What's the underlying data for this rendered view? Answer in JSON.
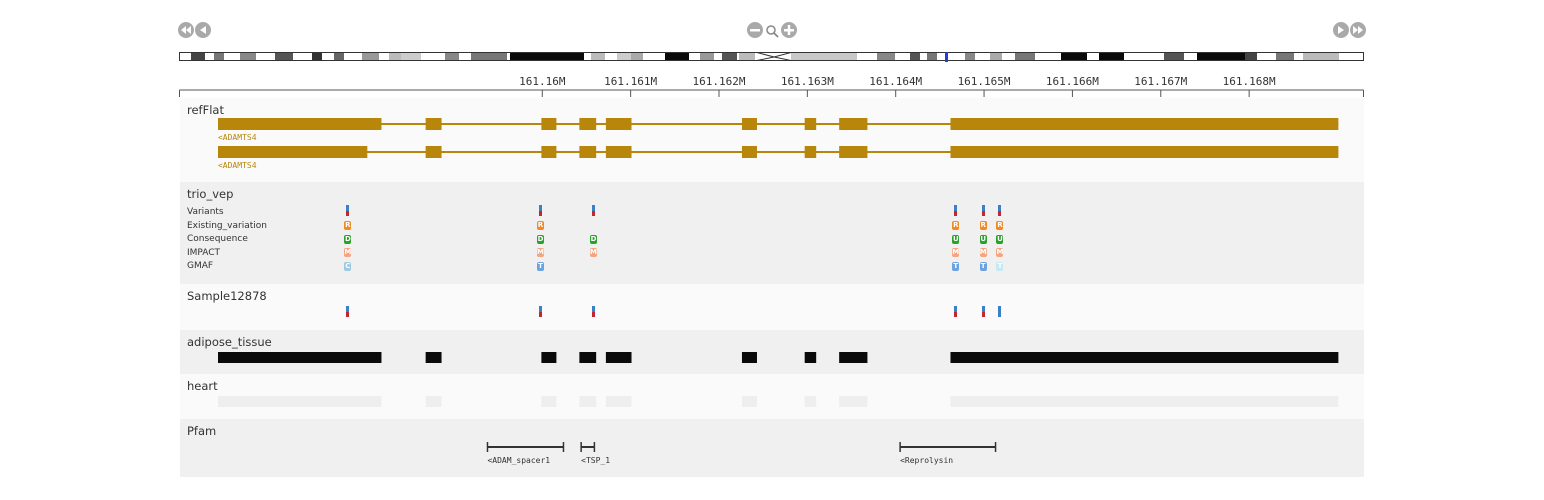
{
  "genome": {
    "range_start": 161155900,
    "range_end": 161169300,
    "ticks": [
      "161.16M",
      "161.161M",
      "161.162M",
      "161.163M",
      "161.164M",
      "161.165M",
      "161.166M",
      "161.167M",
      "161.168M"
    ],
    "tick_values": [
      161160000,
      161161000,
      161162000,
      161163000,
      161164000,
      161165000,
      161166000,
      161167000,
      161168000
    ]
  },
  "nav": {
    "icons": [
      "fast-backward-icon",
      "step-backward-icon",
      "zoom-out-icon",
      "magnifier-icon",
      "zoom-in-icon",
      "step-forward-icon",
      "fast-forward-icon"
    ]
  },
  "colors": {
    "gene": "#b8860b",
    "tissue_adipose": "#0a0a0a",
    "tissue_heart": "#eeeeee",
    "track_bg_a": "#fafafa",
    "track_bg_b": "#f0f0f0",
    "ideogram_marker": "#1f3fd6"
  },
  "tracks": {
    "refflat": {
      "title": "refFlat",
      "transcripts": [
        {
          "label": "<ADAMTS4",
          "start": 161156330,
          "end": 161169010,
          "exons": [
            [
              161156330,
              161158180
            ],
            [
              161158680,
              161158860
            ],
            [
              161159990,
              161160160
            ],
            [
              161160420,
              161160610
            ],
            [
              161160720,
              161161010
            ],
            [
              161162260,
              161162430
            ],
            [
              161162970,
              161163100
            ],
            [
              161163360,
              161163680
            ],
            [
              161164620,
              161169010
            ]
          ]
        },
        {
          "label": "<ADAMTS4",
          "start": 161156330,
          "end": 161169010,
          "exons": [
            [
              161156330,
              161158020
            ],
            [
              161158680,
              161158860
            ],
            [
              161159990,
              161160160
            ],
            [
              161160420,
              161160610
            ],
            [
              161160720,
              161161010
            ],
            [
              161162260,
              161162430
            ],
            [
              161162970,
              161163100
            ],
            [
              161163360,
              161163680
            ],
            [
              161164620,
              161169010
            ]
          ]
        }
      ]
    },
    "trio_vep": {
      "title": "trio_vep",
      "rows": [
        "Variants",
        "Existing_variation",
        "Consequence",
        "IMPACT",
        "GMAF"
      ],
      "variants": [
        {
          "pos": 161157800,
          "existing": "R",
          "consequence": "D",
          "impact": "M",
          "gmaf": "C"
        },
        {
          "pos": 161159980,
          "existing": "R",
          "consequence": "D",
          "impact": "M",
          "gmaf": "T"
        },
        {
          "pos": 161160580,
          "existing": "",
          "consequence": "D",
          "impact": "M",
          "gmaf": ""
        },
        {
          "pos": 161164680,
          "existing": "R",
          "consequence": "U",
          "impact": "M",
          "gmaf": "T"
        },
        {
          "pos": 161164990,
          "existing": "R",
          "consequence": "U",
          "impact": "M",
          "gmaf": "T"
        },
        {
          "pos": 161165180,
          "existing": "R",
          "consequence": "U",
          "impact": "M",
          "gmaf": "T"
        }
      ],
      "glyph_colors": {
        "R": "#f08a24",
        "D": "#2ca02c",
        "U": "#2ca02c",
        "M": "#f4a582",
        "C": "#9ecae1",
        "T": "#6ba3e0"
      },
      "gmaf_light": "#c6e8f5"
    },
    "sample": {
      "title": "Sample12878",
      "variants": [
        {
          "pos": 161157800,
          "genotype": "het"
        },
        {
          "pos": 161159980,
          "genotype": "het"
        },
        {
          "pos": 161160580,
          "genotype": "het"
        },
        {
          "pos": 161164680,
          "genotype": "het"
        },
        {
          "pos": 161164990,
          "genotype": "het"
        },
        {
          "pos": 161165180,
          "genotype": "ref"
        }
      ]
    },
    "adipose": {
      "title": "adipose_tissue"
    },
    "heart": {
      "title": "heart"
    },
    "pfam": {
      "title": "Pfam",
      "domains": [
        {
          "label": "<ADAM_spacer1",
          "start": 161159380,
          "end": 161160240
        },
        {
          "label": "<TSP_1",
          "start": 161160440,
          "end": 161160590
        },
        {
          "label": "<Reprolysin",
          "start": 161164050,
          "end": 161165130
        }
      ]
    }
  }
}
